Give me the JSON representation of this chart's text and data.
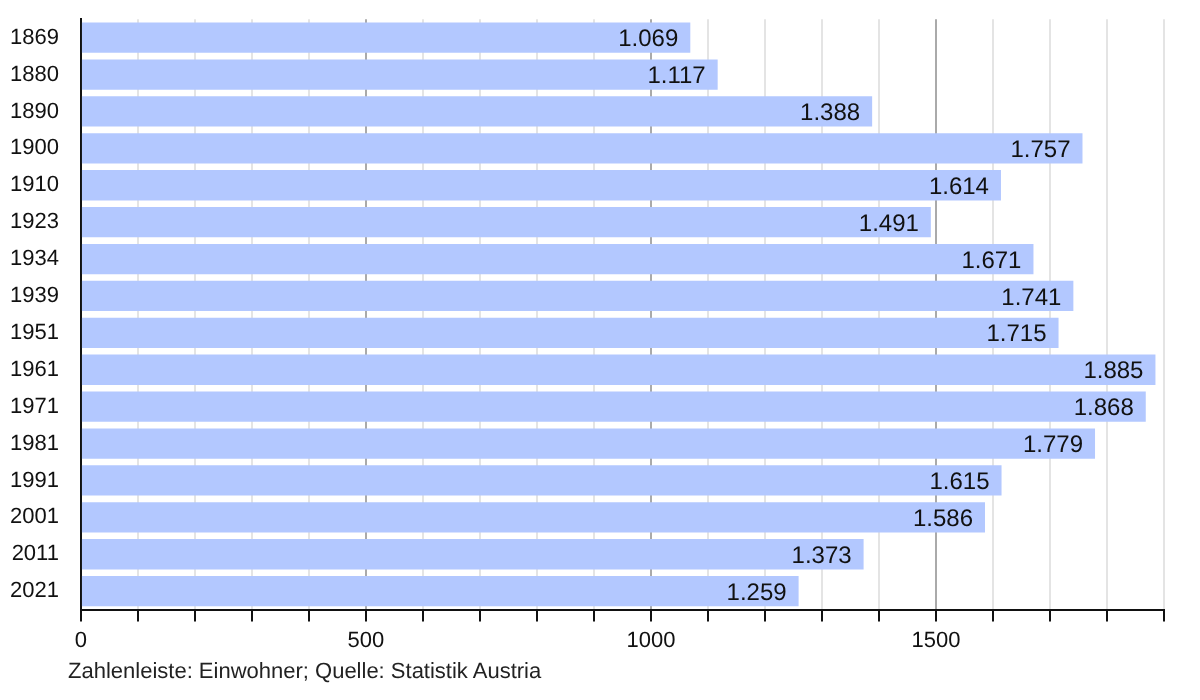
{
  "chart_data": {
    "type": "bar",
    "orientation": "horizontal",
    "categories": [
      "1869",
      "1880",
      "1890",
      "1900",
      "1910",
      "1923",
      "1934",
      "1939",
      "1951",
      "1961",
      "1971",
      "1981",
      "1991",
      "2001",
      "2011",
      "2021"
    ],
    "values": [
      1069,
      1117,
      1388,
      1757,
      1614,
      1491,
      1671,
      1741,
      1715,
      1885,
      1868,
      1779,
      1615,
      1586,
      1373,
      1259
    ],
    "value_labels": [
      "1.069",
      "1.117",
      "1.388",
      "1.757",
      "1.614",
      "1.491",
      "1.671",
      "1.741",
      "1.715",
      "1.885",
      "1.868",
      "1.779",
      "1.615",
      "1.586",
      "1.373",
      "1.259"
    ],
    "color": "#b3c8ff",
    "xlim": [
      0,
      1900
    ],
    "xticks": [
      0,
      {
        "value": 100,
        "label": null
      },
      {
        "value": 200,
        "label": null
      },
      {
        "value": 300,
        "label": null
      },
      {
        "value": 400,
        "label": null
      },
      500,
      {
        "value": 600,
        "label": null
      },
      {
        "value": 700,
        "label": null
      },
      {
        "value": 800,
        "label": null
      },
      {
        "value": 900,
        "label": null
      },
      1000,
      {
        "value": 1100,
        "label": null
      },
      {
        "value": 1200,
        "label": null
      },
      {
        "value": 1300,
        "label": null
      },
      {
        "value": 1400,
        "label": null
      },
      1500,
      {
        "value": 1600,
        "label": null
      },
      {
        "value": 1700,
        "label": null
      },
      {
        "value": 1800,
        "label": null
      },
      {
        "value": 1900,
        "label": null
      }
    ],
    "grid": "x",
    "legend": false,
    "annotations": [
      "Zahlenleiste: Einwohner; Quelle: Statistik Austria"
    ]
  }
}
